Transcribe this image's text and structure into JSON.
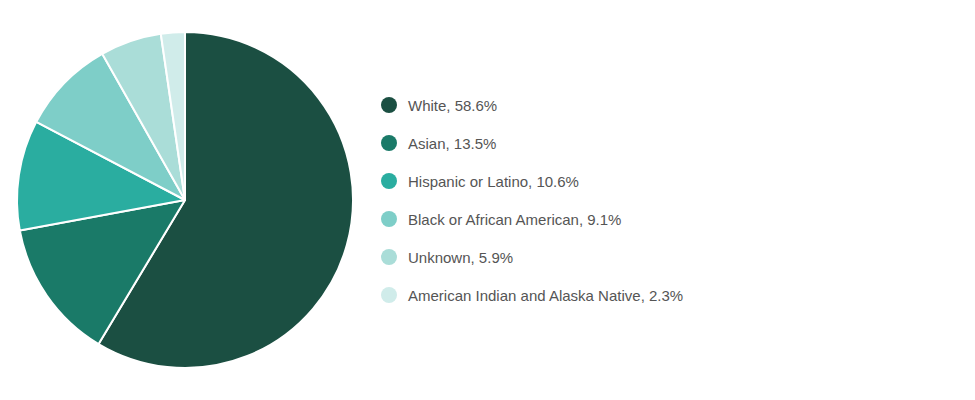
{
  "chart_data": {
    "type": "pie",
    "categories": [
      "White, 58.6%",
      "Asian, 13.5%",
      "Hispanic or Latino, 10.6%",
      "Black or African American, 9.1%",
      "Unknown, 5.9%",
      "American Indian and Alaska Native, 2.3%"
    ],
    "values": [
      58.6,
      13.5,
      10.6,
      9.1,
      5.9,
      2.3
    ],
    "colors": [
      "#1b4f42",
      "#1a7a68",
      "#2aada0",
      "#7ecec8",
      "#aaddd8",
      "#d0ecea"
    ],
    "legend": "right"
  }
}
